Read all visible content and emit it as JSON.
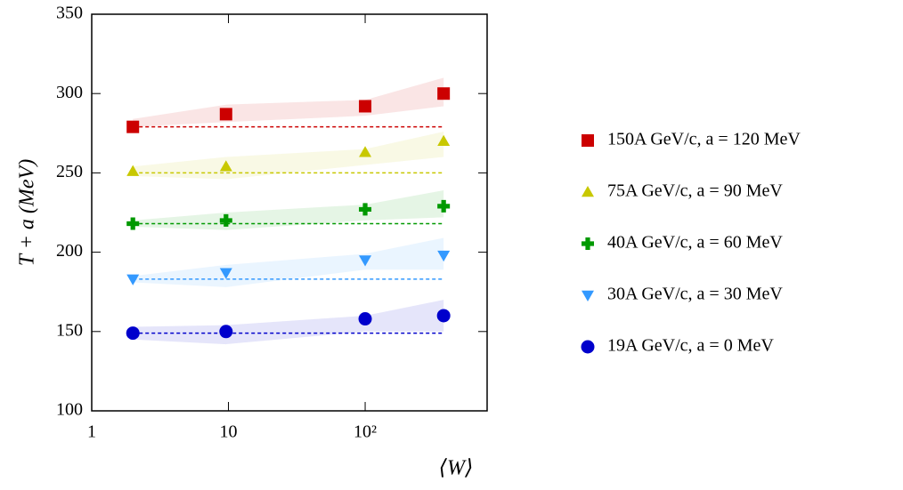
{
  "chart_data": {
    "type": "scatter",
    "xscale": "log",
    "xlabel": "⟨W⟩",
    "ylabel": "T + a (MeV)",
    "x": [
      2.0,
      9.6,
      100,
      375
    ],
    "xlim": [
      1,
      780
    ],
    "xticks": [
      {
        "value": 1,
        "label": "1"
      },
      10,
      {
        "value": 100,
        "label": "10²"
      }
    ],
    "ylim": [
      100,
      350
    ],
    "yticks": [
      100,
      150,
      200,
      250,
      300,
      350
    ],
    "series": [
      {
        "name": "150A GeV/c, a = 120 MeV",
        "color": "#cc0000",
        "marker": "square",
        "values": [
          279,
          287,
          292,
          300
        ],
        "band_lower": [
          279,
          282,
          286,
          292
        ],
        "band_upper": [
          284,
          293,
          296,
          310
        ],
        "baseline": 279
      },
      {
        "name": "75A GeV/c, a = 90 MeV",
        "color": "#c8c800",
        "marker": "triangle-up",
        "values": [
          251,
          254,
          263,
          270
        ],
        "band_lower": [
          248,
          246,
          255,
          260
        ],
        "band_upper": [
          254,
          260,
          265,
          276
        ],
        "baseline": 250
      },
      {
        "name": "40A GeV/c, a = 60 MeV",
        "color": "#009900",
        "marker": "plus",
        "values": [
          218,
          220,
          227,
          229
        ],
        "band_lower": [
          216,
          214,
          220,
          222
        ],
        "band_upper": [
          220,
          225,
          230,
          239
        ],
        "baseline": 218
      },
      {
        "name": "30A GeV/c, a = 30 MeV",
        "color": "#3399ff",
        "marker": "triangle-down",
        "values": [
          183,
          187,
          195,
          198
        ],
        "band_lower": [
          181,
          178,
          189,
          189
        ],
        "band_upper": [
          185,
          192,
          199,
          209
        ],
        "baseline": 183
      },
      {
        "name": "19A GeV/c, a = 0 MeV",
        "color": "#0000cc",
        "marker": "circle",
        "values": [
          149,
          150,
          158,
          160
        ],
        "band_lower": [
          145,
          142,
          150,
          150
        ],
        "band_upper": [
          153,
          154,
          160,
          170
        ],
        "baseline": 149
      }
    ]
  }
}
